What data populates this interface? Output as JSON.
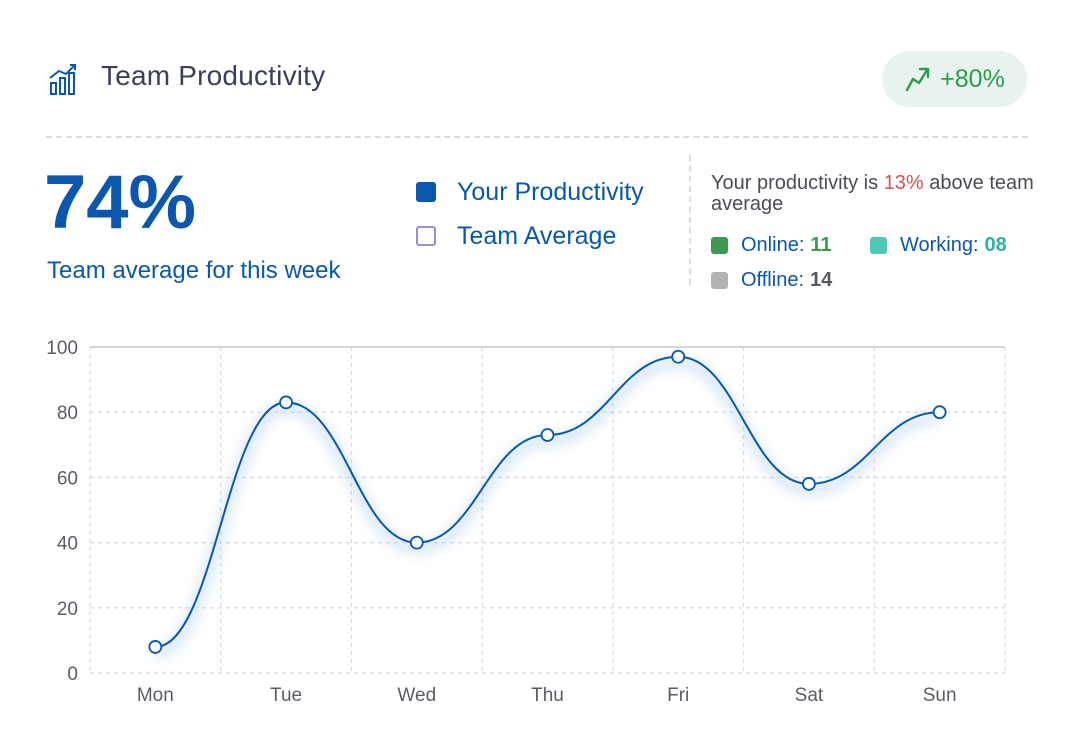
{
  "header": {
    "title": "Team Productivity",
    "icon": "bar-chart-icon",
    "trend": {
      "icon": "trend-up-icon",
      "value": "+80%",
      "color": "#2e9a4e"
    }
  },
  "summary": {
    "value": "74%",
    "subtitle": "Team average for this week",
    "comparison_prefix": "Your productivity is ",
    "comparison_pct": "13%",
    "comparison_suffix": " above team average"
  },
  "legend": [
    {
      "label": "Your Productivity",
      "style": "filled",
      "color": "#0a57b0"
    },
    {
      "label": "Team Average",
      "style": "outline",
      "color": "#9a8fd0"
    }
  ],
  "status": [
    {
      "label": "Online:",
      "value": "11",
      "color": "#3a9b50"
    },
    {
      "label": "Working:",
      "value": "08",
      "color": "#4ec9b4"
    },
    {
      "label": "Offline:",
      "value": "14",
      "color": "#b3b3b3"
    }
  ],
  "chart_data": {
    "type": "line",
    "categories": [
      "Mon",
      "Tue",
      "Wed",
      "Thu",
      "Fri",
      "Sat",
      "Sun"
    ],
    "series": [
      {
        "name": "Your Productivity",
        "values": [
          8,
          83,
          40,
          73,
          97,
          58,
          80
        ],
        "color": "#0a57b0"
      }
    ],
    "ylim": [
      0,
      100
    ],
    "yticks": [
      0,
      20,
      40,
      60,
      80,
      100
    ],
    "xlabel": "",
    "ylabel": "",
    "grid": true,
    "smooth": true
  }
}
